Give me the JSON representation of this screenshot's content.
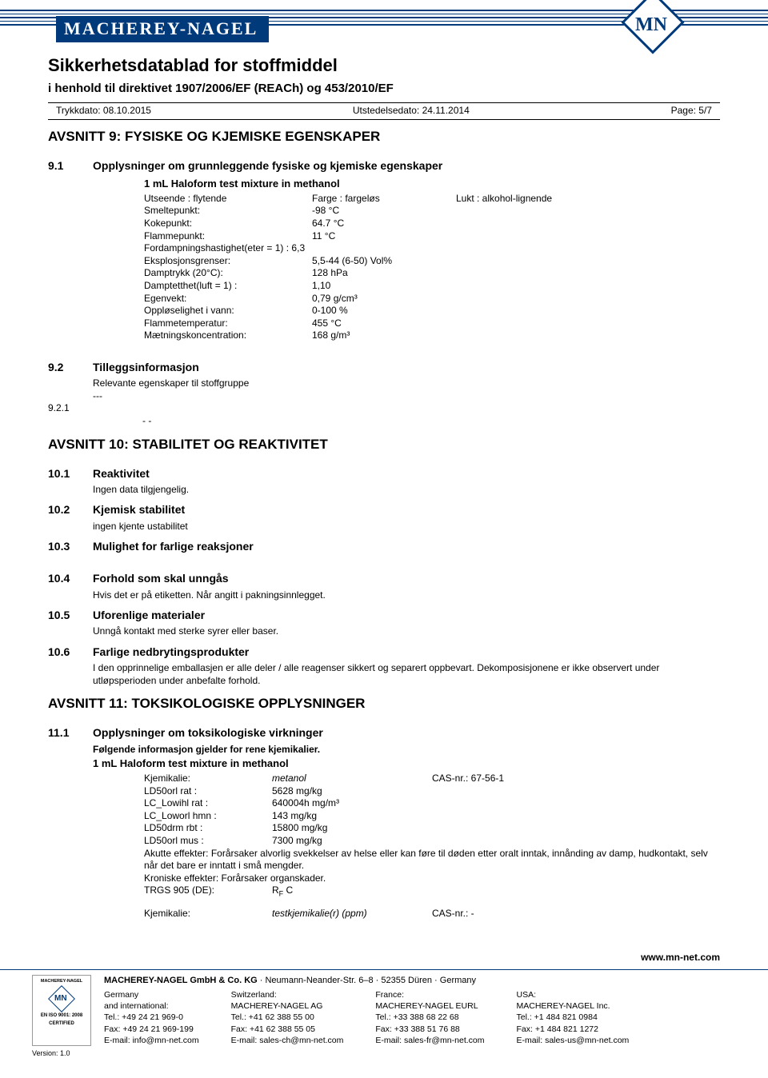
{
  "brand": "MACHEREY-NAGEL",
  "logo_initials": "MN",
  "doc_title": "Sikkerhetsdatablad for stoffmiddel",
  "doc_subtitle": "i henhold til direktivet 1907/2006/EF (REACh) og 453/2010/EF",
  "print_date_label": "Trykkdato:",
  "print_date": "08.10.2015",
  "issue_date_label": "Utstedelsedato:",
  "issue_date": "24.11.2014",
  "page_label": "Page: 5/7",
  "sec9_title": "AVSNITT 9: FYSISKE OG KJEMISKE EGENSKAPER",
  "sec9_1_num": "9.1",
  "sec9_1_title": "Opplysninger om grunnleggende fysiske og kjemiske egenskaper",
  "mixture_heading": "1 mL Haloform test mixture in methanol",
  "utseende_label": "Utseende : flytende",
  "farge_label": "Farge : fargeløs",
  "lukt_label": "Lukt : alkohol-lignende",
  "props": [
    {
      "label": "Smeltepunkt:",
      "val": "-98 °C"
    },
    {
      "label": "Kokepunkt:",
      "val": "64.7 °C"
    },
    {
      "label": "Flammepunkt:",
      "val": "11 °C"
    },
    {
      "label": "Fordampningshastighet(eter = 1) : 6,3",
      "val": ""
    },
    {
      "label": "Eksplosjonsgrenser:",
      "val": "5,5-44 (6-50) Vol%"
    },
    {
      "label": "Damptrykk (20°C):",
      "val": "128 hPa"
    },
    {
      "label": "Damptetthet(luft = 1) :",
      "val": "1,10"
    },
    {
      "label": "Egenvekt:",
      "val": "0,79 g/cm³"
    },
    {
      "label": "Oppløselighet i vann:",
      "val": "0-100 %"
    },
    {
      "label": "Flammetemperatur:",
      "val": "455 °C"
    },
    {
      "label": "Mætningskoncentration:",
      "val": "168 g/m³"
    }
  ],
  "sec9_2_num": "9.2",
  "sec9_2_title": "Tilleggsinformasjon",
  "sec9_2_body": "Relevante egenskaper til stoffgruppe",
  "sec9_2_dash": "---",
  "sec9_2_1_num": "9.2.1",
  "sec9_2_1_body": "- -",
  "sec10_title": "AVSNITT 10: STABILITET OG REAKTIVITET",
  "sec10_1_num": "10.1",
  "sec10_1_title": "Reaktivitet",
  "sec10_1_body": "Ingen data tilgjengelig.",
  "sec10_2_num": "10.2",
  "sec10_2_title": "Kjemisk stabilitet",
  "sec10_2_body": "ingen kjente ustabilitet",
  "sec10_3_num": "10.3",
  "sec10_3_title": "Mulighet for farlige reaksjoner",
  "sec10_4_num": "10.4",
  "sec10_4_title": "Forhold som skal unngås",
  "sec10_4_body": "Hvis det er på etiketten. Når angitt i pakningsinnlegget.",
  "sec10_5_num": "10.5",
  "sec10_5_title": "Uforenlige materialer",
  "sec10_5_body": "Unngå kontakt med sterke syrer eller baser.",
  "sec10_6_num": "10.6",
  "sec10_6_title": "Farlige nedbrytingsprodukter",
  "sec10_6_body": "I den opprinnelige emballasjen er alle deler / alle reagenser sikkert og separert oppbevart. Dekomposisjonene er ikke observert under utløpsperioden under anbefalte forhold.",
  "sec11_title": "AVSNITT 11: TOKSIKOLOGISKE OPPLYSNINGER",
  "sec11_1_num": "11.1",
  "sec11_1_title": "Opplysninger om toksikologiske virkninger",
  "sec11_1_sub": "Følgende informasjon gjelder for rene kjemikalier.",
  "tox_mixture": "1 mL Haloform test mixture in methanol",
  "tox_kj_label": "Kjemikalie:",
  "tox_kj_val": "metanol",
  "tox_cas_label": "CAS-nr.: 67-56-1",
  "tox_rows": [
    {
      "l": "LD50orl rat :",
      "m": "5628 mg/kg"
    },
    {
      "l": "LC_Lowihl rat :",
      "m": "640004h mg/m³"
    },
    {
      "l": "LC_Loworl hmn :",
      "m": "143 mg/kg"
    },
    {
      "l": "LD50drm rbt :",
      "m": "15800 mg/kg"
    },
    {
      "l": "LD50orl mus :",
      "m": "7300 mg/kg"
    }
  ],
  "tox_effects": "Akutte effekter: Forårsaker alvorlig svekkelser av helse eller kan føre til døden etter oralt inntak, innånding av damp, hudkontakt, selv når det bare er inntatt i små mengder.",
  "tox_chronic": "Kroniske effekter: Forårsaker organskader.",
  "tox_trgs": "TRGS 905 (DE):",
  "tox_trgs_val": "RF C",
  "tox_kj2_label": "Kjemikalie:",
  "tox_kj2_val": "testkjemikalie(r) (ppm)",
  "tox_cas2": "CAS-nr.: -",
  "footer_url": "www.mn-net.com",
  "footer_company": "MACHEREY-NAGEL GmbH & Co. KG · Neumann-Neander-Str. 6–8 · 52355 Düren · Germany",
  "footer_cols": [
    {
      "head": "Germany",
      "head2": "and international:",
      "tel": "Tel.:    +49 24 21 969-0",
      "fax": "Fax:    +49 24 21 969-199",
      "email": "E-mail: info@mn-net.com"
    },
    {
      "head": "Switzerland:",
      "head2": "MACHEREY-NAGEL AG",
      "tel": "Tel.:    +41 62 388 55 00",
      "fax": "Fax:    +41 62 388 55 05",
      "email": "E-mail: sales-ch@mn-net.com"
    },
    {
      "head": "France:",
      "head2": "MACHEREY-NAGEL EURL",
      "tel": "Tel.:    +33 388 68 22 68",
      "fax": "Fax:    +33 388 51 76 88",
      "email": "E-mail: sales-fr@mn-net.com"
    },
    {
      "head": "USA:",
      "head2": "MACHEREY-NAGEL Inc.",
      "tel": "Tel.:    +1 484 821 0984",
      "fax": "Fax:    +1 484 821 1272",
      "email": "E-mail: sales-us@mn-net.com"
    }
  ],
  "cert_top": "MACHEREY-NAGEL",
  "cert_iso": "EN ISO 9001: 2008",
  "cert_cert": "CERTIFIED",
  "version": "Version: 1.0"
}
